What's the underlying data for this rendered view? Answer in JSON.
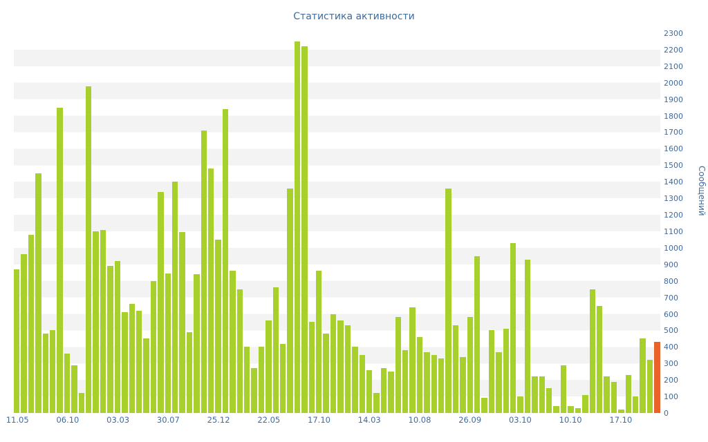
{
  "title": "Статистика активности",
  "y_axis": {
    "title": "Сообщений",
    "min": 0,
    "max": 2300,
    "step": 100
  },
  "colors": {
    "bar": "#a8d02c",
    "accent_bar": "#e8622a",
    "text": "#3e6b9c",
    "stripe": "#f3f3f3",
    "background": "#ffffff"
  },
  "chart_data": {
    "type": "bar",
    "title": "Статистика активности",
    "xlabel": "",
    "ylabel": "Сообщений",
    "ylim": [
      0,
      2300
    ],
    "grid": "horizontal-stripes",
    "legend": "none",
    "x_tick_labels": [
      "11.05",
      "06.10",
      "03.03",
      "30.07",
      "25.12",
      "22.05",
      "17.10",
      "14.03",
      "10.08",
      "26.09",
      "03.10",
      "10.10",
      "17.10"
    ],
    "tick_every": 7,
    "values": [
      870,
      960,
      1080,
      1450,
      480,
      500,
      1850,
      360,
      290,
      120,
      1980,
      1100,
      1110,
      890,
      920,
      610,
      660,
      620,
      450,
      800,
      1340,
      845,
      1400,
      1095,
      490,
      840,
      1710,
      1480,
      1050,
      1840,
      860,
      750,
      400,
      270,
      400,
      560,
      760,
      420,
      1360,
      2250,
      2220,
      550,
      860,
      480,
      600,
      560,
      530,
      400,
      350,
      260,
      120,
      270,
      250,
      580,
      380,
      640,
      460,
      370,
      350,
      330,
      1360,
      530,
      340,
      580,
      950,
      90,
      500,
      370,
      510,
      1030,
      100,
      930,
      220,
      220,
      150,
      40,
      290,
      40,
      30,
      110,
      750,
      650,
      220,
      190,
      20,
      230,
      100,
      450,
      320,
      430
    ],
    "accent_index": 89,
    "series_name": "Сообщений"
  }
}
